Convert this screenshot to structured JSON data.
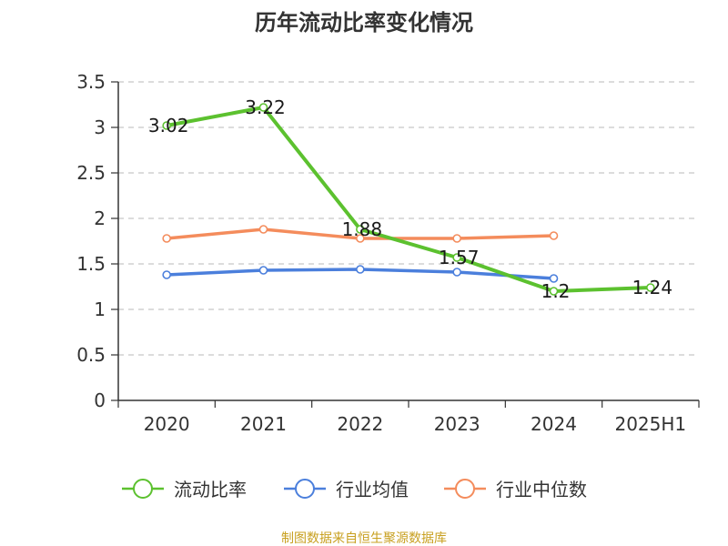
{
  "chart_data": {
    "type": "line",
    "title": "历年流动比率变化情况",
    "categories": [
      "2020",
      "2021",
      "2022",
      "2023",
      "2024",
      "2025H1"
    ],
    "yticks": [
      "0",
      "0.5",
      "1",
      "1.5",
      "2",
      "2.5",
      "3",
      "3.5"
    ],
    "ylim": [
      0,
      3.5
    ],
    "grid": true,
    "legend_position": "bottom",
    "series": [
      {
        "name": "流动比率",
        "color": "#5cc12f",
        "values": [
          3.02,
          3.22,
          1.88,
          1.57,
          1.2,
          1.24
        ],
        "labels": [
          "3.02",
          "3.22",
          "1.88",
          "1.57",
          "1.2",
          "1.24"
        ]
      },
      {
        "name": "行业均值",
        "color": "#4b7fdc",
        "values": [
          1.38,
          1.43,
          1.44,
          1.41,
          1.34,
          null
        ]
      },
      {
        "name": "行业中位数",
        "color": "#f48c5c",
        "values": [
          1.78,
          1.88,
          1.78,
          1.78,
          1.81,
          null
        ]
      }
    ]
  },
  "source": {
    "text": "制图数据来自恒生聚源数据库",
    "color": "#c8a020"
  }
}
